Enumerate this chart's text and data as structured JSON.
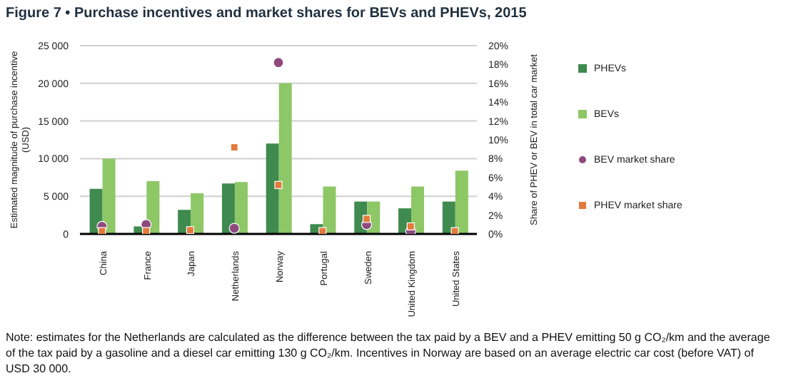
{
  "chart_data": {
    "type": "bar",
    "title": "Figure 7 • Purchase incentives and market shares for BEVs and PHEVs, 2015",
    "categories": [
      "China",
      "France",
      "Japan",
      "Netherlands",
      "Norway",
      "Portugal",
      "Sweden",
      "United Kingdom",
      "United States"
    ],
    "series": [
      {
        "name": "PHEVs",
        "color": "#3f8a4e",
        "values": [
          6000,
          1000,
          3200,
          6700,
          12000,
          1300,
          4300,
          3400,
          4300
        ]
      },
      {
        "name": "BEVs",
        "color": "#8dc766",
        "values": [
          10000,
          7000,
          5400,
          6900,
          20000,
          6300,
          4300,
          6300,
          8400
        ]
      },
      {
        "name": "BEV market share",
        "type": "scatter",
        "axis": "y2",
        "marker": "circle",
        "color": "#8e4a7f",
        "values": [
          0.8,
          1.0,
          null,
          0.6,
          18.2,
          null,
          1.0,
          0.3,
          null
        ]
      },
      {
        "name": "PHEV market share",
        "type": "scatter",
        "axis": "y2",
        "marker": "square",
        "color": "#e37a3c",
        "values": [
          0.3,
          0.3,
          0.4,
          9.2,
          5.2,
          0.3,
          1.6,
          0.8,
          0.3
        ]
      }
    ],
    "ylim": [
      0,
      25000
    ],
    "yticks": [
      {
        "value": 0,
        "label": "0"
      },
      {
        "value": 5000,
        "label": "5 000"
      },
      {
        "value": 10000,
        "label": "10 000"
      },
      {
        "value": 15000,
        "label": "15 000"
      },
      {
        "value": 20000,
        "label": "20 000"
      },
      {
        "value": 25000,
        "label": "25 000"
      }
    ],
    "y2lim": [
      0,
      20
    ],
    "y2ticks": [
      {
        "value": 0,
        "label": "0%"
      },
      {
        "value": 2,
        "label": "2%"
      },
      {
        "value": 4,
        "label": "4%"
      },
      {
        "value": 6,
        "label": "6%"
      },
      {
        "value": 8,
        "label": "8%"
      },
      {
        "value": 10,
        "label": "10%"
      },
      {
        "value": 12,
        "label": "12%"
      },
      {
        "value": 14,
        "label": "14%"
      },
      {
        "value": 16,
        "label": "16%"
      },
      {
        "value": 18,
        "label": "18%"
      },
      {
        "value": 20,
        "label": "20%"
      }
    ],
    "ylabel": "Estimated magnitude of purchase incentive (USD)",
    "y2label": "Share of PHEV or BEV in total car market",
    "grid": "y",
    "legend": "right",
    "annotations": [
      "Note: estimates for the Netherlands are calculated as the difference between the tax paid by a BEV and a PHEV emitting 50 g CO₂/km and the average of the tax paid by a gasoline and a diesel car emitting 130 g CO₂/km. Incentives in Norway are based on an average electric car cost (before VAT) of USD 30 000."
    ]
  }
}
